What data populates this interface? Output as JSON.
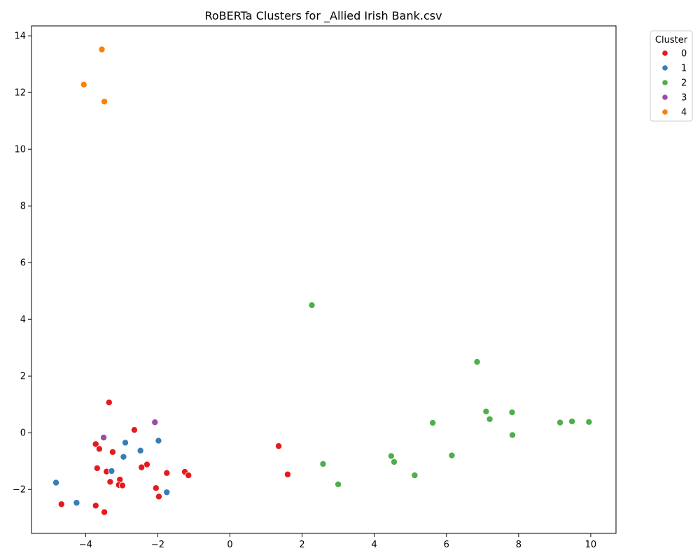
{
  "chart_data": {
    "type": "scatter",
    "title": "RoBERTa Clusters for _Allied Irish Bank.csv",
    "xlabel": "",
    "ylabel": "",
    "xlim": [
      -5.5,
      10.7
    ],
    "ylim": [
      -3.55,
      14.35
    ],
    "xticks": [
      -4,
      -2,
      0,
      2,
      4,
      6,
      8,
      10
    ],
    "yticks": [
      -2,
      0,
      2,
      4,
      6,
      8,
      10,
      12,
      14
    ],
    "grid": false,
    "legend": {
      "title": "Cluster",
      "placement": "upper-right-outside"
    },
    "series": [
      {
        "name": "0",
        "color": "#e41a1c",
        "points": [
          [
            -3.35,
            1.07
          ],
          [
            -2.65,
            0.1
          ],
          [
            -3.72,
            -0.4
          ],
          [
            -3.62,
            -0.57
          ],
          [
            -3.25,
            -0.68
          ],
          [
            -3.68,
            -1.25
          ],
          [
            -3.42,
            -1.37
          ],
          [
            -2.3,
            -1.12
          ],
          [
            -2.45,
            -1.22
          ],
          [
            -1.75,
            -1.42
          ],
          [
            -1.25,
            -1.38
          ],
          [
            -1.15,
            -1.5
          ],
          [
            -3.32,
            -1.73
          ],
          [
            -3.05,
            -1.65
          ],
          [
            -3.08,
            -1.84
          ],
          [
            -2.98,
            -1.86
          ],
          [
            -2.05,
            -1.95
          ],
          [
            -1.97,
            -2.25
          ],
          [
            -4.67,
            -2.52
          ],
          [
            -3.72,
            -2.57
          ],
          [
            -3.48,
            -2.8
          ],
          [
            1.35,
            -0.47
          ],
          [
            1.6,
            -1.47
          ]
        ]
      },
      {
        "name": "1",
        "color": "#377eb8",
        "points": [
          [
            -2.9,
            -0.35
          ],
          [
            -1.98,
            -0.28
          ],
          [
            -2.48,
            -0.63
          ],
          [
            -2.95,
            -0.85
          ],
          [
            -3.28,
            -1.35
          ],
          [
            -4.82,
            -1.76
          ],
          [
            -4.25,
            -2.47
          ],
          [
            -1.75,
            -2.1
          ]
        ]
      },
      {
        "name": "2",
        "color": "#4daf4a",
        "points": [
          [
            2.27,
            4.5
          ],
          [
            6.85,
            2.5
          ],
          [
            7.1,
            0.75
          ],
          [
            7.82,
            0.72
          ],
          [
            7.2,
            0.48
          ],
          [
            5.62,
            0.35
          ],
          [
            9.15,
            0.36
          ],
          [
            9.48,
            0.4
          ],
          [
            9.95,
            0.38
          ],
          [
            7.83,
            -0.08
          ],
          [
            4.47,
            -0.82
          ],
          [
            4.55,
            -1.03
          ],
          [
            6.15,
            -0.8
          ],
          [
            2.58,
            -1.1
          ],
          [
            5.12,
            -1.5
          ],
          [
            3.0,
            -1.82
          ]
        ]
      },
      {
        "name": "3",
        "color": "#984ea3",
        "points": [
          [
            -2.08,
            0.37
          ],
          [
            -3.5,
            -0.17
          ]
        ]
      },
      {
        "name": "4",
        "color": "#ff7f00",
        "points": [
          [
            -3.55,
            13.52
          ],
          [
            -4.05,
            12.28
          ],
          [
            -3.48,
            11.68
          ]
        ]
      }
    ]
  }
}
